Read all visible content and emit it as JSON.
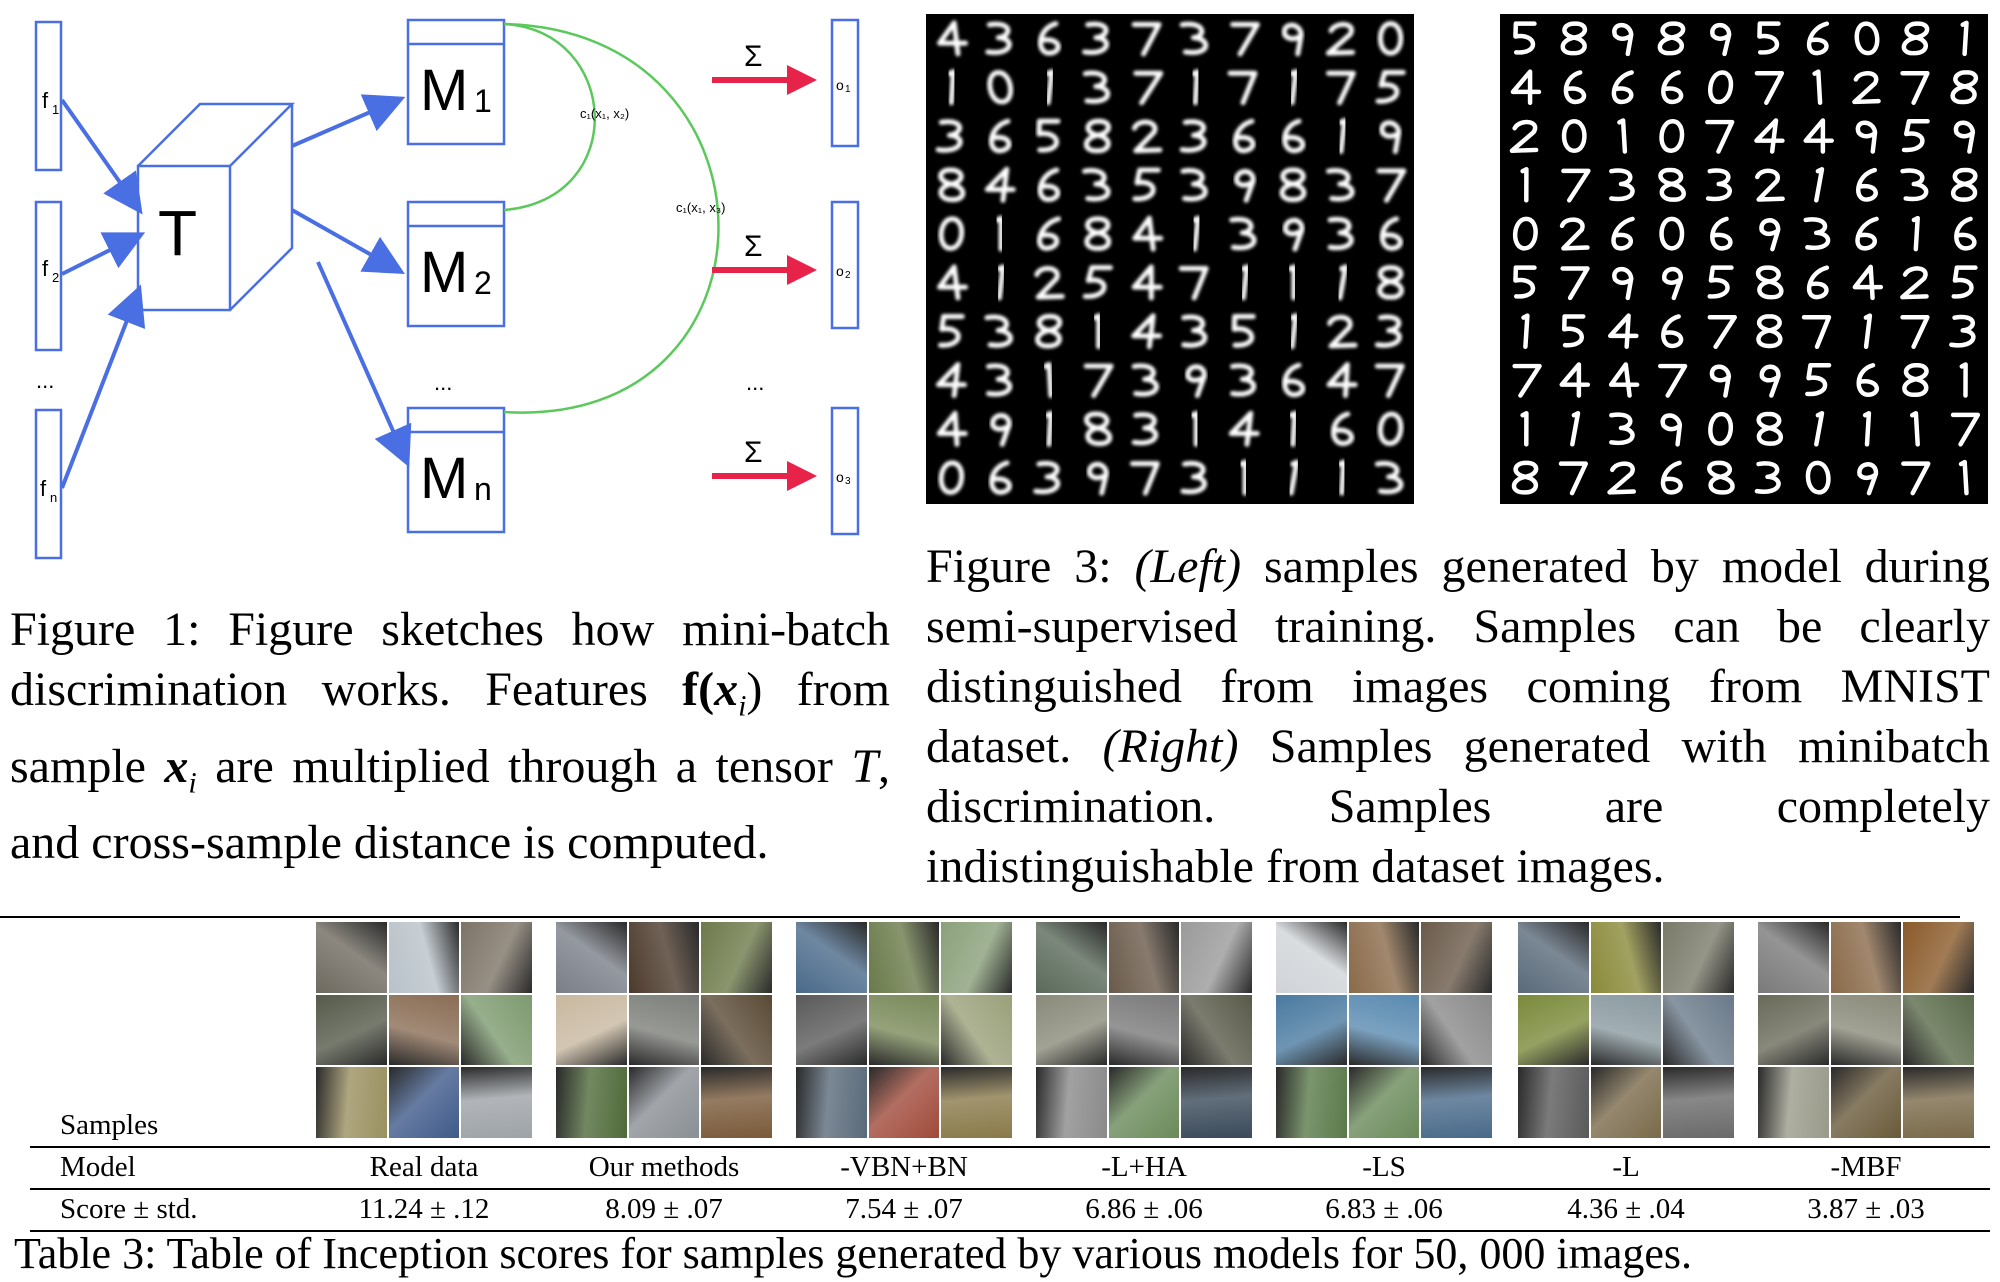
{
  "figure1": {
    "inputs": [
      {
        "base": "f",
        "sub": "1"
      },
      {
        "base": "f",
        "sub": "2"
      },
      {
        "base": "f",
        "sub": "n"
      }
    ],
    "tensor_label": "T",
    "matrices": [
      {
        "base": "M",
        "sub": "1"
      },
      {
        "base": "M",
        "sub": "2"
      },
      {
        "base": "M",
        "sub": "n"
      }
    ],
    "sum_symbol": "Σ",
    "outputs": [
      {
        "base": "o",
        "sub": "1"
      },
      {
        "base": "o",
        "sub": "2"
      },
      {
        "base": "o",
        "sub": "3"
      }
    ],
    "distance_labels": [
      "c₁(x₁, x₂)",
      "c₁(x₁, x₃)"
    ],
    "ellipsis": "...",
    "colors": {
      "shape": "#4a6fe3",
      "arc": "#5bc85b",
      "arrow": "#e8234a"
    }
  },
  "caption1": {
    "label": "Figure 1:",
    "text_a": "Figure sketches how mini-batch discrimination works. Features",
    "math_f": "f(",
    "math_x": "x",
    "math_sub": "i",
    "text_b": ") from sample",
    "text_c": "are multiplied through a tensor",
    "tensor": "T",
    "text_d": ", and cross-sample distance is computed."
  },
  "caption3": {
    "label": "Figure 3:",
    "left_tag": "(Left)",
    "text_a": "samples generated by model during semi-supervised training. Samples can be clearly distinguished from images coming from MNIST dataset.",
    "right_tag": "(Right)",
    "text_b": "Samples generated with minibatch discrimination. Samples are completely indistinguishable from dataset images."
  },
  "table3": {
    "row_labels": {
      "samples": "Samples",
      "model": "Model",
      "score": "Score ± std."
    },
    "columns": [
      {
        "model": "Real data",
        "score": "11.24 ± .12"
      },
      {
        "model": "Our methods",
        "score": "8.09 ± .07"
      },
      {
        "model": "-VBN+BN",
        "score": "7.54 ± .07"
      },
      {
        "model": "-L+HA",
        "score": "6.86 ± .06"
      },
      {
        "model": "-LS",
        "score": "6.83 ± .06"
      },
      {
        "model": "-L",
        "score": "4.36 ± .04"
      },
      {
        "model": "-MBF",
        "score": "3.87 ± .03"
      }
    ],
    "caption": "Table 3: Table of Inception scores for samples generated by various models for 50, 000 images."
  },
  "palettes": [
    [
      "#6f6a60",
      "#b9c2c9",
      "#7d7467",
      "#555a4a",
      "#8a6d55",
      "#7d9a6f",
      "#9a9060",
      "#3f5a8a",
      "#9ea3a8"
    ],
    [
      "#7a7f88",
      "#4c3a2c",
      "#6d7a4a",
      "#c8b8a0",
      "#7d7f7a",
      "#5a4a35",
      "#4f6a3a",
      "#8a8f95",
      "#7a5a3a"
    ],
    [
      "#4a6a8a",
      "#6a7a4a",
      "#8aa07a",
      "#5a5a5a",
      "#7a8a5a",
      "#9aa07a",
      "#5a6a7a",
      "#a04a3a",
      "#8a7a4a"
    ],
    [
      "#5a6a5a",
      "#6a5a4a",
      "#9a9a9a",
      "#8a8a7a",
      "#7a7a7a",
      "#5a5a4a",
      "#8a8a8a",
      "#6a8a5a",
      "#3a4a5a"
    ],
    [
      "#d0d4d8",
      "#8a6a4a",
      "#6a5a4a",
      "#4a7aa0",
      "#5a8ab0",
      "#8a8a8a",
      "#5a7a4a",
      "#6a8a5a",
      "#4a6a8a"
    ],
    [
      "#5a6a7a",
      "#8a8a3a",
      "#7a7a6a",
      "#7a8a3a",
      "#8a9aa0",
      "#6a7a8a",
      "#5a5a5a",
      "#7a6a4a",
      "#6a6a6a"
    ],
    [
      "#7a7a7a",
      "#8a6a4a",
      "#8a5a2a",
      "#6a6a5a",
      "#8a8a7a",
      "#5a6a4a",
      "#9a9a8a",
      "#6a5a3a",
      "#7a6a4a"
    ]
  ]
}
